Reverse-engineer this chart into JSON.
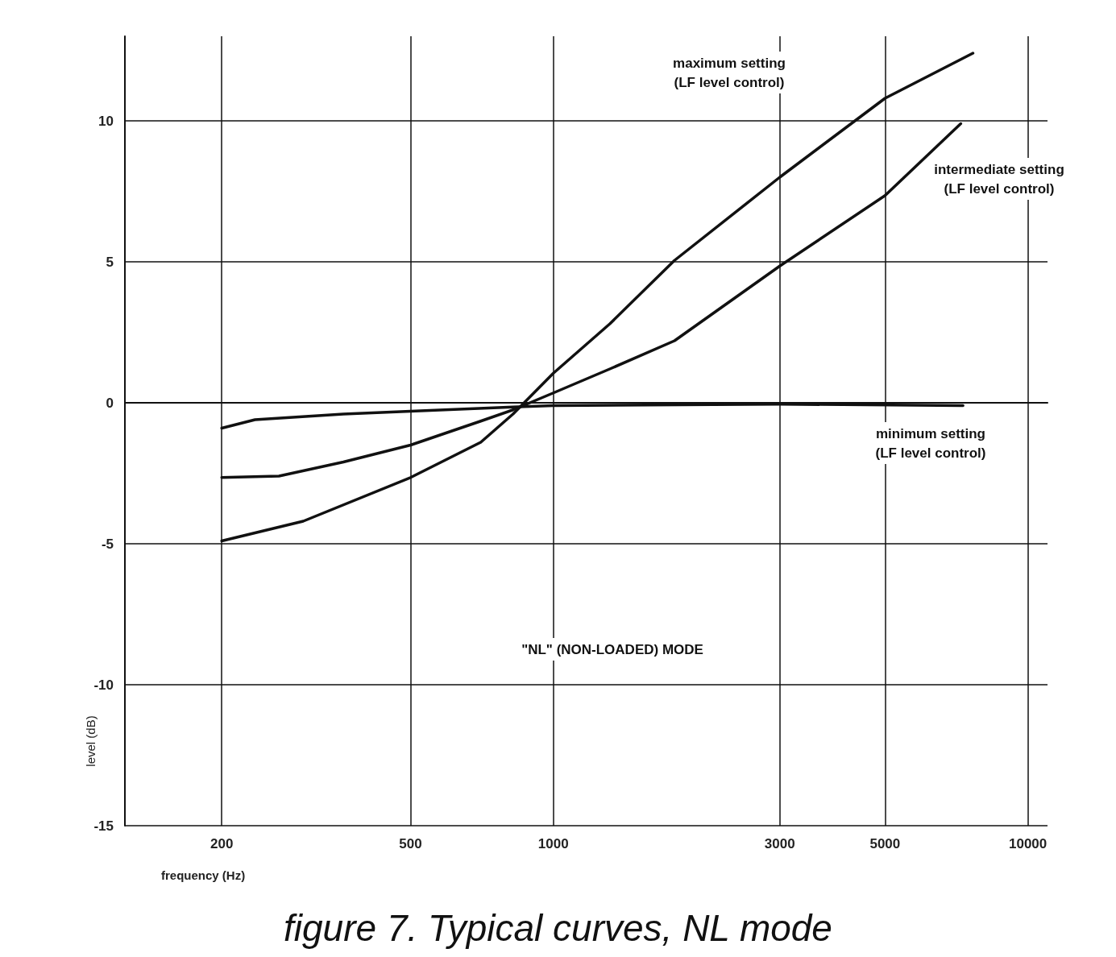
{
  "chart_data": {
    "type": "line",
    "title": "figure 7. Typical curves, NL mode",
    "xlabel": "frequency (Hz)",
    "ylabel": "level (dB)",
    "log": "x",
    "grid": true,
    "marker": "none",
    "line_style": "solid",
    "xlim": [
      125,
      11000
    ],
    "xticks": [
      200,
      500,
      1000,
      3000,
      5000,
      10000
    ],
    "ylim": [
      -15,
      13
    ],
    "yticks": [
      -15,
      -10,
      -5,
      0,
      5,
      10
    ],
    "series": [
      {
        "color": "#111111",
        "x": [
          200,
          297,
          500,
          703,
          822,
          1000,
          1315,
          1800,
          3000,
          5000,
          7660
        ],
        "values": [
          -4.9,
          -4.2,
          -2.65,
          -1.4,
          -0.4,
          1.05,
          2.8,
          5.05,
          8.0,
          10.8,
          12.4
        ]
      },
      {
        "color": "#111111",
        "x": [
          200,
          264,
          361,
          500,
          703,
          822,
          1000,
          1315,
          1800,
          3000,
          5000,
          7220
        ],
        "values": [
          -2.65,
          -2.6,
          -2.1,
          -1.5,
          -0.65,
          -0.25,
          0.35,
          1.2,
          2.2,
          4.85,
          7.35,
          9.9
        ]
      },
      {
        "color": "#111111",
        "x": [
          200,
          235,
          361,
          500,
          822,
          1000,
          3000,
          7300
        ],
        "values": [
          -0.9,
          -0.6,
          -0.4,
          -0.3,
          -0.15,
          -0.1,
          -0.05,
          -0.1
        ]
      }
    ],
    "annotations": [
      "maximum setting\n(LF level control)",
      "intermediate setting\n(LF level control)",
      "minimum setting\n(LF level control)",
      "\"NL\" (NON-LOADED) MODE"
    ]
  }
}
